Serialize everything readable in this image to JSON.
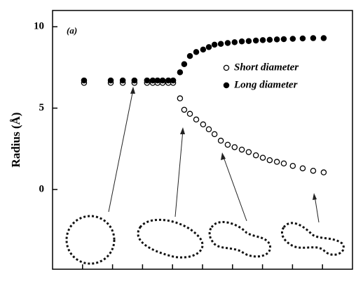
{
  "chart_data": {
    "type": "scatter",
    "annotation": "(a)",
    "y_label": "Radius (Å)",
    "x": [
      1.05,
      1.94,
      2.34,
      2.73,
      3.15,
      3.34,
      3.5,
      3.67,
      3.86,
      4.02,
      4.25,
      4.39,
      4.58,
      4.79,
      5.02,
      5.21,
      5.4,
      5.61,
      5.84,
      6.07,
      6.31,
      6.54,
      6.78,
      7.01,
      7.24,
      7.48,
      7.71,
      8.01,
      8.34,
      8.69,
      9.04
    ],
    "series": [
      {
        "name": "Short diameter",
        "color": "#000000",
        "filled": false,
        "values": [
          6.55,
          6.55,
          6.55,
          6.55,
          6.55,
          6.55,
          6.55,
          6.55,
          6.55,
          6.55,
          5.6,
          4.9,
          4.65,
          4.3,
          4.0,
          3.7,
          3.4,
          3.0,
          2.75,
          2.6,
          2.45,
          2.3,
          2.1,
          1.95,
          1.8,
          1.7,
          1.6,
          1.45,
          1.3,
          1.15,
          1.05
        ]
      },
      {
        "name": "Long diameter",
        "color": "#000000",
        "filled": true,
        "values": [
          6.7,
          6.7,
          6.7,
          6.7,
          6.7,
          6.7,
          6.7,
          6.7,
          6.7,
          6.7,
          7.2,
          7.7,
          8.2,
          8.45,
          8.6,
          8.75,
          8.9,
          8.95,
          9.0,
          9.05,
          9.1,
          9.12,
          9.15,
          9.18,
          9.2,
          9.22,
          9.24,
          9.26,
          9.28,
          9.3,
          9.3
        ]
      }
    ],
    "xlim": [
      0,
      10
    ],
    "xticks": [
      1,
      2,
      3,
      4,
      5,
      6,
      7,
      8,
      9
    ],
    "ylim": [
      -4.9,
      11
    ],
    "yticks": [
      0,
      5,
      10
    ]
  }
}
